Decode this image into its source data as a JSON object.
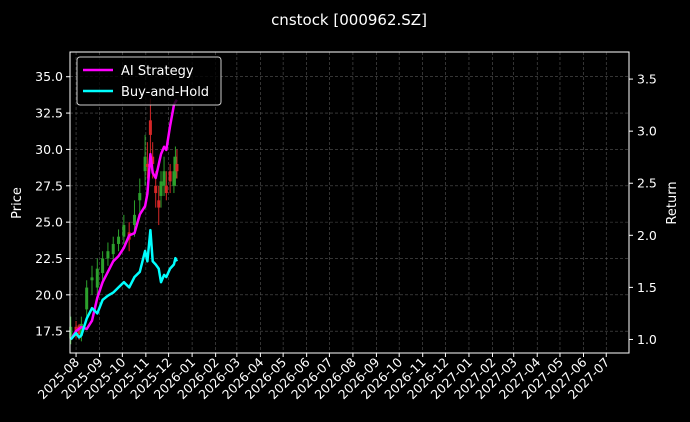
{
  "chart_data": {
    "type": "line",
    "title": "cnstock [000962.SZ]",
    "xlabel": "",
    "ylabel": "Price",
    "y2label": "Return",
    "x_tick_labels": [
      "2025-08",
      "2025-09",
      "2025-10",
      "2025-11",
      "2025-12",
      "2026-01",
      "2026-02",
      "2026-03",
      "2026-04",
      "2026-05",
      "2026-06",
      "2026-07",
      "2026-08",
      "2026-09",
      "2026-10",
      "2026-11",
      "2026-12",
      "2027-01",
      "2027-02",
      "2027-03",
      "2027-04",
      "2027-05",
      "2027-06",
      "2027-07"
    ],
    "y_ticks": [
      17.5,
      20.0,
      22.5,
      25.0,
      27.5,
      30.0,
      32.5,
      35.0
    ],
    "y_tick_labels": [
      "17.5",
      "20.0",
      "22.5",
      "25.0",
      "27.5",
      "30.0",
      "32.5",
      "35.0"
    ],
    "y2_ticks": [
      1.0,
      1.5,
      2.0,
      2.5,
      3.0,
      3.5
    ],
    "y2_tick_labels": [
      "1.0",
      "1.5",
      "2.0",
      "2.5",
      "3.0",
      "3.5"
    ],
    "ylim": [
      16.0,
      36.7
    ],
    "y2lim": [
      0.87,
      3.76
    ],
    "grid": true,
    "legend_position": "top-left",
    "colors": {
      "background": "#000000",
      "axes": "#ffffff",
      "grid": "#555555",
      "candle_up": "#2ca02c",
      "candle_down": "#d62728"
    },
    "series": [
      {
        "name": "AI Strategy",
        "color": "#ff00ff",
        "axis": "right",
        "x": [
          "2025-07-25",
          "2025-08-01",
          "2025-08-08",
          "2025-08-15",
          "2025-08-22",
          "2025-08-29",
          "2025-09-05",
          "2025-09-12",
          "2025-09-19",
          "2025-09-26",
          "2025-10-03",
          "2025-10-10",
          "2025-10-17",
          "2025-10-24",
          "2025-10-31",
          "2025-11-03",
          "2025-11-07",
          "2025-11-10",
          "2025-11-14",
          "2025-11-18",
          "2025-11-21",
          "2025-11-25",
          "2025-11-28",
          "2025-12-03",
          "2025-12-08",
          "2025-12-10",
          "2025-12-12"
        ],
        "values": [
          1.0,
          1.08,
          1.12,
          1.1,
          1.18,
          1.4,
          1.55,
          1.65,
          1.75,
          1.8,
          1.88,
          2.0,
          2.02,
          2.2,
          2.28,
          2.4,
          2.78,
          2.6,
          2.55,
          2.68,
          2.78,
          2.85,
          2.82,
          3.05,
          3.25,
          3.28,
          3.3
        ]
      },
      {
        "name": "Buy-and-Hold",
        "color": "#00ffff",
        "axis": "right",
        "x": [
          "2025-07-25",
          "2025-08-01",
          "2025-08-05",
          "2025-08-08",
          "2025-08-15",
          "2025-08-22",
          "2025-08-29",
          "2025-09-05",
          "2025-09-12",
          "2025-09-19",
          "2025-09-26",
          "2025-10-03",
          "2025-10-10",
          "2025-10-17",
          "2025-10-24",
          "2025-10-31",
          "2025-11-03",
          "2025-11-07",
          "2025-11-10",
          "2025-11-14",
          "2025-11-18",
          "2025-11-21",
          "2025-11-25",
          "2025-11-28",
          "2025-12-03",
          "2025-12-08",
          "2025-12-10",
          "2025-12-12"
        ],
        "values": [
          1.0,
          1.06,
          1.02,
          1.04,
          1.2,
          1.3,
          1.25,
          1.38,
          1.42,
          1.45,
          1.5,
          1.55,
          1.5,
          1.6,
          1.65,
          1.85,
          1.75,
          2.05,
          1.75,
          1.72,
          1.68,
          1.55,
          1.62,
          1.6,
          1.68,
          1.72,
          1.78,
          1.75
        ]
      }
    ],
    "price_series": {
      "axis": "left",
      "x": [
        "2025-07-25",
        "2025-08-01",
        "2025-08-05",
        "2025-08-08",
        "2025-08-15",
        "2025-08-22",
        "2025-08-29",
        "2025-09-05",
        "2025-09-12",
        "2025-09-19",
        "2025-09-26",
        "2025-10-03",
        "2025-10-10",
        "2025-10-17",
        "2025-10-24",
        "2025-10-31",
        "2025-11-03",
        "2025-11-07",
        "2025-11-10",
        "2025-11-14",
        "2025-11-18",
        "2025-11-21",
        "2025-11-25",
        "2025-11-28",
        "2025-12-03",
        "2025-12-08",
        "2025-12-10",
        "2025-12-12"
      ],
      "open": [
        17.0,
        17.8,
        17.9,
        17.2,
        19.0,
        21.0,
        20.5,
        21.5,
        22.5,
        22.8,
        23.5,
        24.0,
        24.3,
        24.8,
        26.5,
        28.5,
        29.0,
        32.0,
        29.5,
        27.5,
        26.5,
        26.8,
        27.5,
        27.5,
        28.5,
        27.5,
        28.0,
        29.0
      ],
      "close": [
        17.8,
        17.5,
        17.3,
        18.0,
        20.5,
        21.2,
        21.8,
        22.5,
        23.0,
        23.5,
        24.0,
        24.8,
        23.8,
        25.5,
        27.0,
        29.5,
        28.8,
        31.0,
        29.0,
        27.0,
        26.0,
        27.8,
        28.5,
        27.0,
        27.8,
        28.5,
        29.5,
        28.5
      ],
      "high": [
        18.5,
        18.2,
        18.0,
        18.5,
        21.0,
        22.0,
        22.5,
        23.0,
        23.6,
        24.0,
        24.5,
        25.5,
        25.0,
        26.5,
        28.0,
        31.0,
        30.5,
        33.5,
        30.5,
        28.5,
        27.5,
        28.5,
        29.5,
        28.5,
        29.0,
        29.5,
        30.2,
        30.0
      ],
      "low": [
        16.6,
        17.0,
        16.9,
        16.8,
        18.5,
        20.0,
        20.0,
        21.0,
        22.0,
        22.2,
        23.0,
        23.5,
        23.0,
        24.0,
        25.5,
        27.5,
        28.0,
        29.5,
        28.0,
        26.0,
        24.8,
        26.0,
        26.8,
        26.5,
        27.0,
        27.0,
        27.5,
        28.0
      ]
    }
  }
}
